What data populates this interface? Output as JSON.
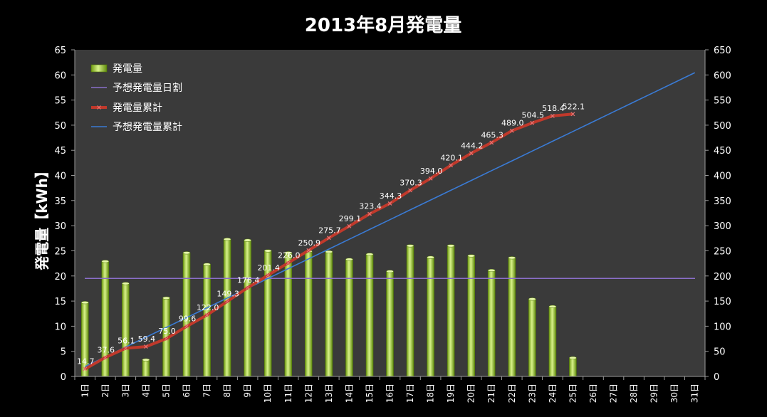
{
  "chart_data": {
    "type": "bar",
    "title": "2013年8月発電量",
    "ylabel": "発電量【kWh】",
    "xlabel": "",
    "categories": [
      "1日",
      "2日",
      "3日",
      "4日",
      "5日",
      "6日",
      "7日",
      "8日",
      "9日",
      "10日",
      "11日",
      "12日",
      "13日",
      "14日",
      "15日",
      "16日",
      "17日",
      "18日",
      "19日",
      "20日",
      "21日",
      "22日",
      "23日",
      "24日",
      "25日",
      "26日",
      "27日",
      "28日",
      "29日",
      "30日",
      "31日"
    ],
    "y_ticks": [
      "0",
      "5",
      "10",
      "15",
      "20",
      "25",
      "30",
      "35",
      "40",
      "45",
      "50",
      "55",
      "60",
      "65"
    ],
    "y2_ticks": [
      "0",
      "50",
      "100",
      "150",
      "200",
      "250",
      "300",
      "350",
      "400",
      "450",
      "500",
      "550",
      "600",
      "650"
    ],
    "ylim": [
      0,
      65
    ],
    "y2lim": [
      0,
      650
    ],
    "grid": false,
    "legend_position": "top-left",
    "series": [
      {
        "name": "発電量",
        "type": "bar",
        "axis": "left",
        "color": "#9acd32",
        "values": [
          14.7,
          22.9,
          18.5,
          3.3,
          15.6,
          24.6,
          22.3,
          27.3,
          27.1,
          25.0,
          24.6,
          24.9,
          24.8,
          23.3,
          24.3,
          20.9,
          26.0,
          23.7,
          26.0,
          24.0,
          21.1,
          23.6,
          15.4,
          13.9,
          3.7,
          null,
          null,
          null,
          null,
          null,
          null
        ]
      },
      {
        "name": "予想発電量日割",
        "type": "line",
        "axis": "left",
        "color": "#8a6fc9",
        "values": [
          19.5,
          19.5,
          19.5,
          19.5,
          19.5,
          19.5,
          19.5,
          19.5,
          19.5,
          19.5,
          19.5,
          19.5,
          19.5,
          19.5,
          19.5,
          19.5,
          19.5,
          19.5,
          19.5,
          19.5,
          19.5,
          19.5,
          19.5,
          19.5,
          19.5,
          19.5,
          19.5,
          19.5,
          19.5,
          19.5,
          19.5
        ]
      },
      {
        "name": "発電量累計",
        "type": "line",
        "axis": "right",
        "color": "#c0392b",
        "labels": true,
        "values": [
          14.7,
          37.6,
          56.1,
          59.4,
          75.0,
          99.6,
          122.0,
          149.3,
          176.4,
          201.4,
          226.0,
          250.9,
          275.7,
          299.1,
          323.4,
          344.3,
          370.3,
          394.0,
          420.1,
          444.2,
          465.3,
          489.0,
          504.5,
          518.4,
          522.1,
          null,
          null,
          null,
          null,
          null,
          null
        ]
      },
      {
        "name": "予想発電量累計",
        "type": "line",
        "axis": "right",
        "color": "#3a7bd5",
        "values": [
          19.5,
          39.0,
          58.5,
          78.0,
          97.5,
          117.0,
          136.5,
          156.0,
          175.5,
          195.0,
          214.5,
          234.0,
          253.5,
          273.0,
          292.5,
          312.0,
          331.5,
          351.0,
          370.5,
          390.0,
          409.5,
          429.0,
          448.5,
          468.0,
          487.5,
          507.0,
          526.5,
          546.0,
          565.5,
          585.0,
          604.5
        ]
      }
    ],
    "data_labels": [
      "14.7",
      "37.6",
      "56.1",
      "59.4",
      "75.0",
      "99.6",
      "122.0",
      "149.3",
      "176.4",
      "201.4",
      "226.0",
      "250.9",
      "275.7",
      "299.1",
      "323.4",
      "344.3",
      "370.3",
      "394.0",
      "420.1",
      "444.2",
      "465.3",
      "489.0",
      "504.5",
      "518.4",
      "522.1"
    ]
  }
}
